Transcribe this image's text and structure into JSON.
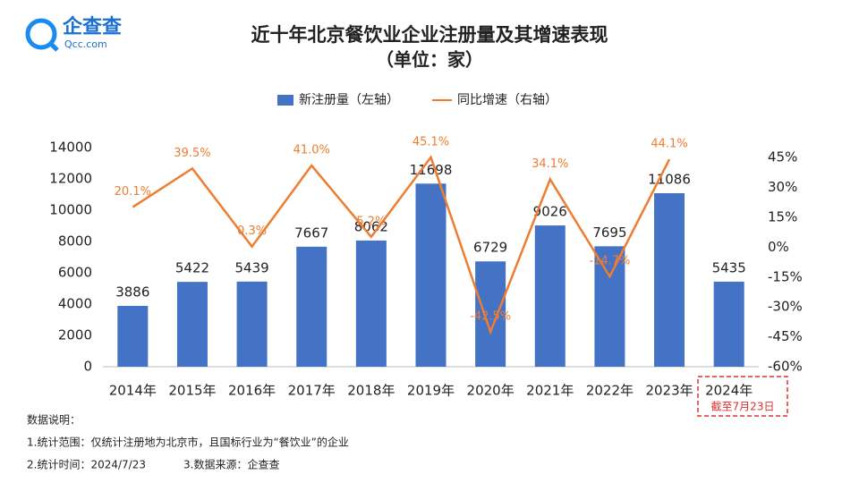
{
  "logo": {
    "name": "企查查",
    "domain": "Qcc.com"
  },
  "chart_data": {
    "type": "bar_line",
    "title": "近十年北京餐饮业企业注册量及其增速表现",
    "subtitle": "（单位：家）",
    "categories": [
      "2014年",
      "2015年",
      "2016年",
      "2017年",
      "2018年",
      "2019年",
      "2020年",
      "2021年",
      "2022年",
      "2023年",
      "2024年"
    ],
    "category_note": "截至7月23日",
    "series": [
      {
        "name": "新注册量（左轴）",
        "color": "#4472c4",
        "type": "bar",
        "values": [
          3886,
          5422,
          5439,
          7667,
          8062,
          11698,
          6729,
          9026,
          7695,
          11086,
          5435
        ]
      },
      {
        "name": "同比增速（右轴）",
        "color": "#ed7d31",
        "type": "line",
        "axis": "y2",
        "values": [
          20.1,
          39.5,
          0.3,
          41.0,
          5.2,
          45.1,
          -42.5,
          34.1,
          -14.7,
          44.1,
          null
        ],
        "value_labels": [
          "20.1%",
          "39.5%",
          "0.3%",
          "41.0%",
          "5.2%",
          "45.1%",
          "-42.5%",
          "34.1%",
          "-14.7%",
          "44.1%",
          null
        ]
      }
    ],
    "ylim": [
      0,
      14000
    ],
    "yticks": [
      0,
      2000,
      4000,
      6000,
      8000,
      10000,
      12000,
      14000
    ],
    "y2lim": [
      -60,
      50
    ],
    "y2ticks": [
      {
        "value": -60,
        "label": "-60%"
      },
      {
        "value": -45,
        "label": "-45%"
      },
      {
        "value": -30,
        "label": "-30%"
      },
      {
        "value": -15,
        "label": "-15%"
      },
      {
        "value": 0,
        "label": "0%"
      },
      {
        "value": 15,
        "label": "15%"
      },
      {
        "value": 30,
        "label": "30%"
      },
      {
        "value": 45,
        "label": "45%"
      }
    ],
    "legend": "top"
  },
  "notes": [
    "数据说明：",
    "1.统计范围：仅统计注册地为北京市，且国标行业为“餐饮业”的企业",
    "2.统计时间：2024/7/23",
    "3.数据来源：企查查"
  ]
}
